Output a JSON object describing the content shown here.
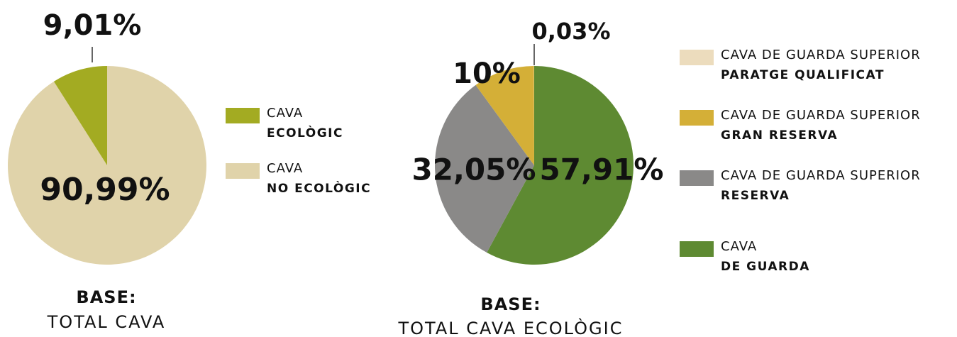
{
  "chart_data": [
    {
      "type": "pie",
      "categories": [
        [
          "CAVA",
          "ECOLÒGIC"
        ],
        [
          "CAVA",
          "NO ECOLÒGIC"
        ]
      ],
      "values": [
        9.01,
        90.99
      ],
      "value_labels": [
        "9,01%",
        "90,99%"
      ],
      "colors": [
        "#a3ab22",
        "#e0d3aa"
      ],
      "footnote": [
        "BASE:",
        "TOTAL CAVA"
      ]
    },
    {
      "type": "pie",
      "categories": [
        [
          "CAVA DE GUARDA SUPERIOR",
          "PARATGE QUALIFICAT"
        ],
        [
          "CAVA DE GUARDA SUPERIOR",
          "GRAN RESERVA"
        ],
        [
          "CAVA DE GUARDA SUPERIOR",
          "RESERVA"
        ],
        [
          "CAVA",
          "DE GUARDA"
        ]
      ],
      "values": [
        0.03,
        10,
        32.05,
        57.91
      ],
      "value_labels": [
        "0,03%",
        "10%",
        "32,05%",
        "57,91%"
      ],
      "colors": [
        "#ecdcbd",
        "#d4af37",
        "#8a8988",
        "#5e8a32"
      ],
      "footnote": [
        "BASE:",
        "TOTAL CAVA ECOLÒGIC"
      ]
    }
  ]
}
